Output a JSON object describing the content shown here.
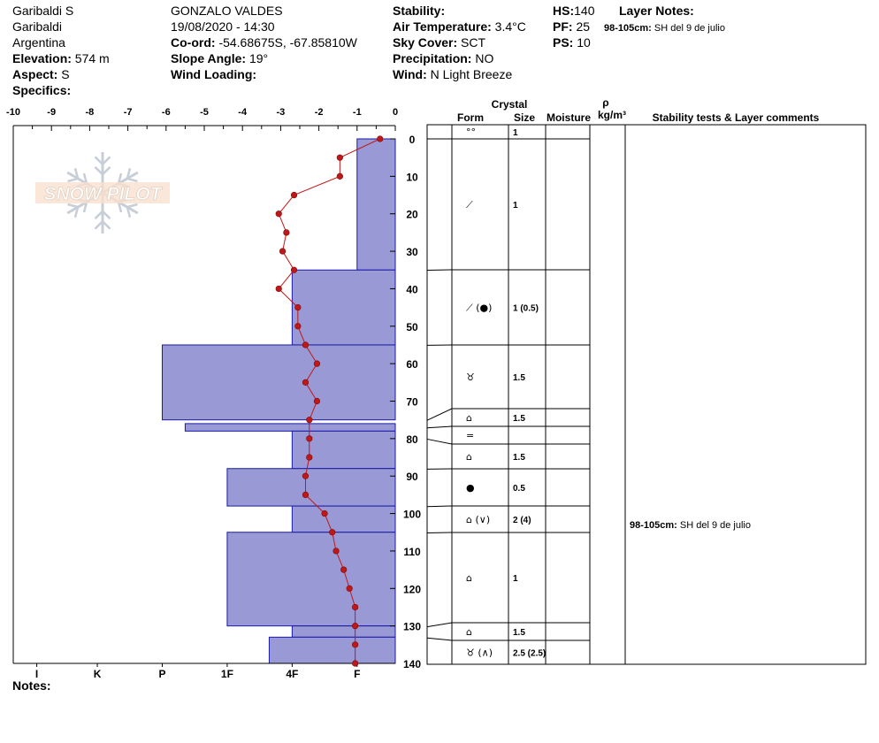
{
  "header": {
    "location": "Garibaldi S",
    "region": "Garibaldi",
    "country": "Argentina",
    "elevation_label": "Elevation:",
    "elevation": "574 m",
    "aspect_label": "Aspect:",
    "aspect": "S",
    "specifics_label": "Specifics:",
    "observer": "GONZALO VALDES",
    "datetime": "19/08/2020 - 14:30",
    "coord_label": "Co-ord:",
    "coord": "-54.68675S, -67.85810W",
    "slope_label": "Slope Angle:",
    "slope": "19°",
    "wind_loading_label": "Wind Loading:",
    "stability_label": "Stability:",
    "air_temp_label": "Air Temperature:",
    "air_temp": "3.4°C",
    "sky_label": "Sky Cover:",
    "sky": "SCT",
    "precip_label": "Precipitation:",
    "precip": "NO",
    "wind_label": "Wind:",
    "wind": "N Light Breeze",
    "hs_label": "HS:",
    "hs": "140",
    "pf_label": "PF:",
    "pf": "25",
    "ps_label": "PS:",
    "ps": "10",
    "layer_notes_label": "Layer Notes:",
    "layer_note_depth": "98-105cm:",
    "layer_note_text": "SH del 9 de julio"
  },
  "notes_label": "Notes:",
  "logo_text": "SNOW PILOT",
  "columns": {
    "crystal": "Crystal",
    "form": "Form",
    "size": "Size",
    "moisture": "Moisture",
    "rho": "ρ",
    "density_unit": "kg/m³",
    "comments": "Stability tests & Layer comments"
  },
  "layer_comment": {
    "depth": "98-105cm:",
    "text": "SH del 9 de julio"
  },
  "colors": {
    "hardness_fill": "#9999d6",
    "hardness_stroke": "#1a1aa8",
    "temp_line": "#c01818"
  },
  "chart_data": {
    "type": "snow_profile",
    "temperature_axis": {
      "min": -10,
      "max": 0,
      "ticks": [
        "-10",
        "-9",
        "-8",
        "-7",
        "-6",
        "-5",
        "-4",
        "-3",
        "-2",
        "-1",
        "0"
      ]
    },
    "depth_axis": {
      "min": 0,
      "max": 140,
      "ticks": [
        "0",
        "10",
        "20",
        "30",
        "40",
        "50",
        "60",
        "70",
        "80",
        "90",
        "100",
        "110",
        "120",
        "130",
        "140"
      ]
    },
    "hardness_axis": {
      "labels": [
        "I",
        "K",
        "P",
        "1F",
        "4F",
        "F"
      ],
      "values": [
        -9.5,
        -7.8,
        -6.1,
        -4.4,
        -2.7,
        -1.0
      ]
    },
    "hardness_profile": [
      {
        "top": 0,
        "bottom": 35,
        "hardness": "F"
      },
      {
        "top": 35,
        "bottom": 55,
        "hardness": "4F"
      },
      {
        "top": 55,
        "bottom": 75,
        "hardness": "P"
      },
      {
        "top": 76,
        "bottom": 78,
        "hardness": "P-"
      },
      {
        "top": 78,
        "bottom": 88,
        "hardness": "4F"
      },
      {
        "top": 88,
        "bottom": 98,
        "hardness": "1F"
      },
      {
        "top": 98,
        "bottom": 105,
        "hardness": "4F"
      },
      {
        "top": 105,
        "bottom": 130,
        "hardness": "1F"
      },
      {
        "top": 130,
        "bottom": 133,
        "hardness": "4F"
      },
      {
        "top": 133,
        "bottom": 140,
        "hardness": "4F+"
      }
    ],
    "temperature_profile": [
      {
        "depth": 0,
        "temp": -0.4
      },
      {
        "depth": 5,
        "temp": -1.45
      },
      {
        "depth": 10,
        "temp": -1.45
      },
      {
        "depth": 15,
        "temp": -2.65
      },
      {
        "depth": 20,
        "temp": -3.05
      },
      {
        "depth": 25,
        "temp": -2.85
      },
      {
        "depth": 30,
        "temp": -2.95
      },
      {
        "depth": 35,
        "temp": -2.65
      },
      {
        "depth": 40,
        "temp": -3.05
      },
      {
        "depth": 45,
        "temp": -2.55
      },
      {
        "depth": 50,
        "temp": -2.55
      },
      {
        "depth": 55,
        "temp": -2.35
      },
      {
        "depth": 60,
        "temp": -2.05
      },
      {
        "depth": 65,
        "temp": -2.35
      },
      {
        "depth": 70,
        "temp": -2.05
      },
      {
        "depth": 75,
        "temp": -2.25
      },
      {
        "depth": 80,
        "temp": -2.25
      },
      {
        "depth": 85,
        "temp": -2.25
      },
      {
        "depth": 90,
        "temp": -2.35
      },
      {
        "depth": 95,
        "temp": -2.35
      },
      {
        "depth": 100,
        "temp": -1.85
      },
      {
        "depth": 105,
        "temp": -1.65
      },
      {
        "depth": 110,
        "temp": -1.55
      },
      {
        "depth": 115,
        "temp": -1.35
      },
      {
        "depth": 120,
        "temp": -1.2
      },
      {
        "depth": 125,
        "temp": -1.05
      },
      {
        "depth": 130,
        "temp": -1.05
      },
      {
        "depth": 135,
        "temp": -1.05
      },
      {
        "depth": 140,
        "temp": -1.05
      }
    ],
    "layers": [
      {
        "top": 0,
        "bottom": 0,
        "form_icon": "precip-particles-icon",
        "form": "°°",
        "size": "1"
      },
      {
        "top": 0,
        "bottom": 35,
        "form_icon": "decomposed-fragments-icon",
        "form": "⟋",
        "size": "1"
      },
      {
        "top": 35,
        "bottom": 55,
        "form_icon": "decomposed-and-rounded-icon",
        "form": "⟋ (●)",
        "size": "1 (0.5)"
      },
      {
        "top": 55,
        "bottom": 75,
        "form_icon": "depth-hoar-icon",
        "form": "♉",
        "size": "1.5"
      },
      {
        "top": 75,
        "bottom": 77,
        "form_icon": "faceted-icon",
        "form": "⌂",
        "size": "1.5"
      },
      {
        "top": 77,
        "bottom": 80,
        "form_icon": "crust-icon",
        "form": "=",
        "size": ""
      },
      {
        "top": 80,
        "bottom": 88,
        "form_icon": "faceted-icon",
        "form": "⌂",
        "size": "1.5"
      },
      {
        "top": 88,
        "bottom": 98,
        "form_icon": "rounded-grains-icon",
        "form": "●",
        "size": "0.5"
      },
      {
        "top": 98,
        "bottom": 105,
        "form_icon": "faceted-and-surface-hoar-icon",
        "form": "⌂ (∨)",
        "size": "2 (4)"
      },
      {
        "top": 105,
        "bottom": 130,
        "form_icon": "faceted-icon",
        "form": "⌂",
        "size": "1"
      },
      {
        "top": 130,
        "bottom": 133,
        "form_icon": "faceted-icon",
        "form": "⌂",
        "size": "1.5"
      },
      {
        "top": 133,
        "bottom": 140,
        "form_icon": "depth-hoar-icon",
        "form": "♉ (∧)",
        "size": "2.5 (2.5)"
      }
    ]
  }
}
